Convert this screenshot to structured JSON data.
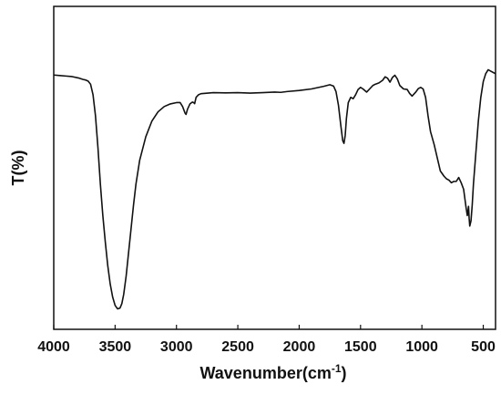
{
  "chart_data": {
    "type": "line",
    "xlabel": "Wavenumber(cm",
    "xlabel_superscript": "-1",
    "xlabel_suffix": ")",
    "ylabel": "T(%)",
    "xlim": [
      4000,
      400
    ],
    "x_reversed": true,
    "ylim": [
      0,
      100
    ],
    "y_ticks_shown": false,
    "x_ticks": [
      4000,
      3500,
      3000,
      2500,
      2000,
      1500,
      1000,
      500
    ],
    "x_tick_labels": [
      "4000",
      "3500",
      "3000",
      "2500",
      "2000",
      "1500",
      "1000",
      "500"
    ],
    "grid": false,
    "series": [
      {
        "color": "#111111",
        "x": [
          4000,
          3950,
          3900,
          3850,
          3800,
          3780,
          3760,
          3740,
          3720,
          3700,
          3680,
          3660,
          3640,
          3620,
          3600,
          3580,
          3560,
          3540,
          3520,
          3500,
          3480,
          3460,
          3445,
          3430,
          3410,
          3390,
          3370,
          3350,
          3330,
          3300,
          3250,
          3200,
          3150,
          3100,
          3050,
          3000,
          2970,
          2950,
          2930,
          2922,
          2910,
          2890,
          2870,
          2860,
          2852,
          2840,
          2820,
          2800,
          2700,
          2600,
          2500,
          2400,
          2300,
          2200,
          2150,
          2100,
          2000,
          1900,
          1800,
          1750,
          1720,
          1700,
          1680,
          1660,
          1645,
          1635,
          1625,
          1615,
          1600,
          1580,
          1560,
          1540,
          1520,
          1500,
          1480,
          1450,
          1420,
          1400,
          1380,
          1350,
          1320,
          1300,
          1280,
          1260,
          1240,
          1220,
          1200,
          1180,
          1150,
          1120,
          1100,
          1080,
          1050,
          1030,
          1010,
          990,
          970,
          950,
          930,
          900,
          870,
          850,
          820,
          800,
          780,
          760,
          740,
          720,
          700,
          680,
          660,
          640,
          630,
          620,
          615,
          610,
          600,
          590,
          580,
          560,
          540,
          520,
          500,
          480,
          460,
          440,
          420,
          400
        ],
        "y": [
          89.5,
          89.3,
          89.1,
          88.9,
          88.4,
          88.1,
          87.8,
          87.6,
          87.2,
          86.0,
          82.0,
          74.0,
          62.0,
          48.0,
          36.0,
          26.0,
          17.0,
          10.0,
          5.0,
          1.8,
          0.5,
          0.8,
          2.5,
          6.0,
          13.0,
          22.0,
          31.0,
          40.0,
          48.0,
          57.0,
          66.0,
          72.0,
          75.5,
          77.5,
          78.5,
          79.0,
          79.0,
          77.5,
          75.0,
          74.5,
          76.5,
          78.5,
          79.2,
          79.0,
          78.6,
          81.0,
          82.0,
          82.4,
          82.8,
          82.7,
          82.8,
          82.6,
          82.8,
          83.0,
          82.9,
          83.2,
          83.6,
          84.2,
          85.2,
          85.8,
          85.3,
          83.2,
          78.0,
          70.0,
          64.5,
          63.5,
          66.5,
          73.0,
          79.0,
          81.0,
          80.5,
          82.0,
          84.0,
          84.8,
          84.2,
          83.0,
          84.5,
          85.5,
          86.0,
          86.5,
          87.5,
          88.8,
          88.3,
          86.8,
          88.6,
          89.4,
          88.0,
          85.5,
          84.2,
          84.0,
          82.5,
          81.5,
          83.0,
          84.3,
          84.8,
          84.2,
          81.0,
          74.0,
          68.0,
          63.0,
          57.0,
          53.0,
          51.0,
          50.0,
          49.5,
          48.5,
          49.0,
          49.0,
          50.5,
          48.5,
          46.0,
          39.0,
          36.0,
          39.5,
          35.0,
          32.0,
          34.0,
          40.0,
          48.0,
          60.0,
          72.0,
          81.0,
          87.0,
          90.0,
          91.5,
          91.0,
          90.5,
          90.0
        ]
      }
    ]
  }
}
